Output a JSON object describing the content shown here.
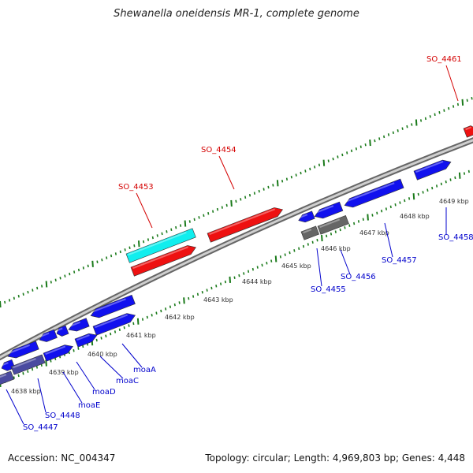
{
  "title": "Shewanella oneidensis MR-1, complete genome",
  "footer": {
    "accession": "Accession: NC_004347",
    "summary": "Topology: circular; Length: 4,969,803 bp; Genes: 4,448"
  },
  "colors": {
    "red": "#ee1111",
    "cyan": "#11eeee",
    "blue": "#1111ee",
    "gray": "#666666",
    "navy": "#4a4aa0",
    "tick": "#1a7a1a",
    "backbone": "#888888"
  },
  "kbp_labels": [
    "4638 kbp",
    "4639 kbp",
    "4640 kbp",
    "4641 kbp",
    "4642 kbp",
    "4643 kbp",
    "4644 kbp",
    "4645 kbp",
    "4646 kbp",
    "4647 kbp",
    "4648 kbp",
    "4649 kbp"
  ],
  "gene_labels": [
    {
      "text": "SO_4461",
      "color": "red"
    },
    {
      "text": "SO_4454",
      "color": "red"
    },
    {
      "text": "SO_4453",
      "color": "red"
    },
    {
      "text": "SO_4458",
      "color": "blue"
    },
    {
      "text": "SO_4457",
      "color": "blue"
    },
    {
      "text": "SO_4456",
      "color": "blue"
    },
    {
      "text": "SO_4455",
      "color": "blue"
    },
    {
      "text": "moaA",
      "color": "blue"
    },
    {
      "text": "moaC",
      "color": "blue"
    },
    {
      "text": "moaD",
      "color": "blue"
    },
    {
      "text": "moaE",
      "color": "blue"
    },
    {
      "text": "SO_4448",
      "color": "blue"
    },
    {
      "text": "SO_4447",
      "color": "blue"
    }
  ]
}
